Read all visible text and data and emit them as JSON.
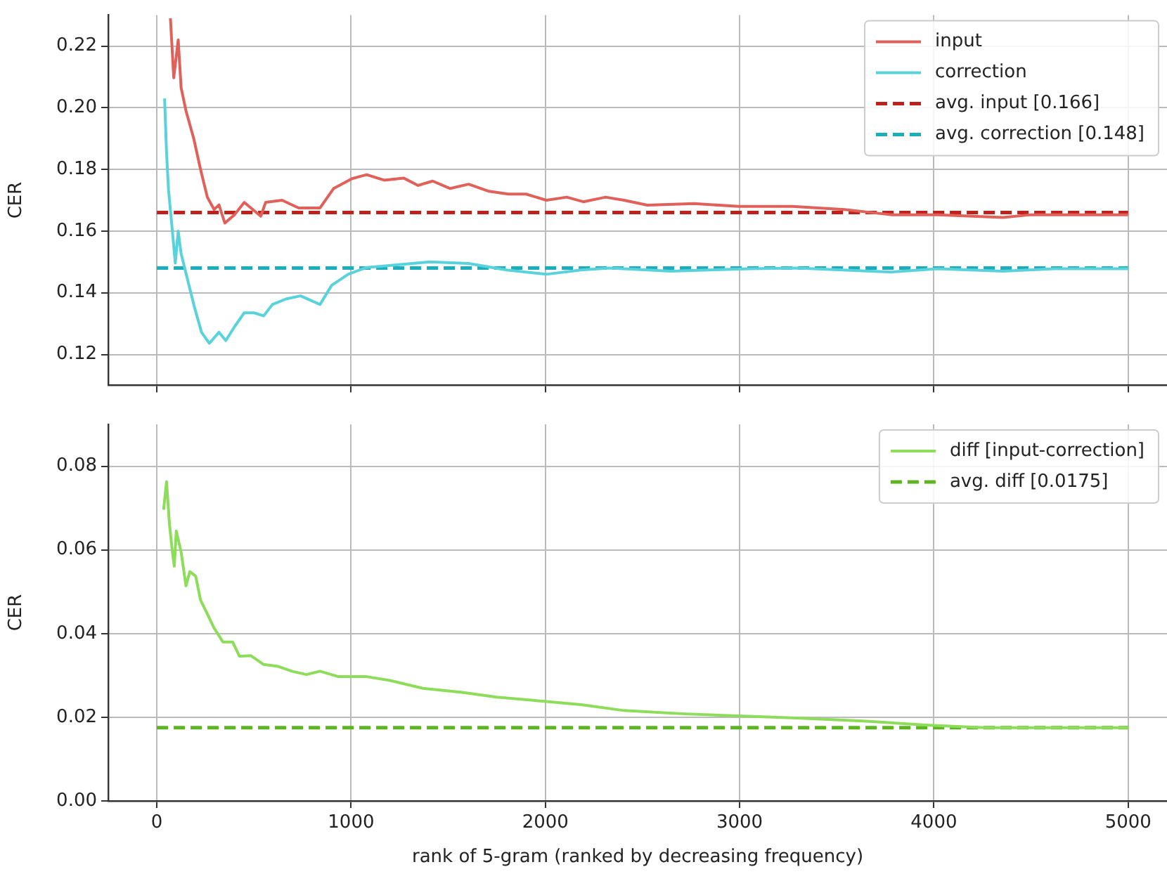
{
  "chart_data": [
    {
      "type": "line",
      "ylabel": "CER",
      "xlim": [
        -250,
        5200
      ],
      "xticks": [
        0,
        1000,
        2000,
        3000,
        4000,
        5000
      ],
      "ylim": [
        0.11,
        0.23
      ],
      "yticks": [
        0.12,
        0.14,
        0.16,
        0.18,
        {
          "value": 0.2,
          "label": "0.20"
        },
        0.22
      ],
      "tick_labels": "y",
      "grid": true,
      "legend": "top right",
      "series": [
        {
          "name": "input",
          "color": "#e0605a",
          "x": [
            70,
            87,
            110,
            125,
            150,
            190,
            225,
            260,
            295,
            320,
            350,
            400,
            450,
            535,
            560,
            645,
            730,
            840,
            910,
            1005,
            1080,
            1170,
            1270,
            1345,
            1420,
            1510,
            1605,
            1710,
            1810,
            1900,
            2005,
            2110,
            2195,
            2310,
            2405,
            2525,
            2765,
            2995,
            3270,
            3540,
            3780,
            4020,
            4355,
            4500,
            4740,
            5000
          ],
          "values": [
            0.229,
            0.2097,
            0.222,
            0.2065,
            0.199,
            0.19,
            0.18,
            0.171,
            0.167,
            0.1685,
            0.1626,
            0.1653,
            0.1693,
            0.1648,
            0.1693,
            0.17,
            0.1675,
            0.1675,
            0.1738,
            0.177,
            0.1783,
            0.1765,
            0.1772,
            0.1748,
            0.1762,
            0.1738,
            0.1752,
            0.1729,
            0.172,
            0.172,
            0.17,
            0.171,
            0.1695,
            0.171,
            0.17,
            0.1684,
            0.1689,
            0.168,
            0.168,
            0.167,
            0.1653,
            0.1653,
            0.1644,
            0.1653,
            0.1653,
            0.1653
          ]
        },
        {
          "name": "correction",
          "color": "#5ad2dc",
          "x": [
            40,
            50,
            60,
            80,
            95,
            110,
            125,
            160,
            195,
            230,
            270,
            320,
            355,
            400,
            450,
            500,
            550,
            595,
            665,
            740,
            840,
            900,
            985,
            1080,
            1225,
            1405,
            1605,
            1800,
            2005,
            2185,
            2330,
            2525,
            2645,
            3055,
            3295,
            3780,
            4020,
            4355,
            4620,
            5000
          ],
          "values": [
            0.203,
            0.1855,
            0.1735,
            0.16,
            0.1496,
            0.16,
            0.1527,
            0.1438,
            0.135,
            0.1272,
            0.1236,
            0.1272,
            0.1245,
            0.129,
            0.1335,
            0.1335,
            0.1325,
            0.1362,
            0.138,
            0.139,
            0.1362,
            0.1424,
            0.146,
            0.1482,
            0.149,
            0.15,
            0.1495,
            0.1474,
            0.146,
            0.1474,
            0.148,
            0.1474,
            0.147,
            0.1478,
            0.148,
            0.1467,
            0.1478,
            0.147,
            0.1478,
            0.1478
          ]
        },
        {
          "name": "avg. input [0.166]",
          "color": "#c0201a",
          "line_style": "dashed",
          "x": [
            0,
            5000
          ],
          "values": [
            0.166,
            0.166
          ]
        },
        {
          "name": "avg. correction [0.148]",
          "color": "#1aadba",
          "line_style": "dashed",
          "x": [
            0,
            5000
          ],
          "values": [
            0.148,
            0.148
          ]
        }
      ]
    },
    {
      "type": "line",
      "ylabel": "CER",
      "xlabel": "rank of 5-gram (ranked by decreasing frequency)",
      "xlim": [
        -250,
        5200
      ],
      "xticks": [
        0,
        1000,
        2000,
        3000,
        4000,
        5000
      ],
      "ylim": [
        0,
        0.09
      ],
      "yticks": [
        {
          "value": 0,
          "label": "0.00"
        },
        0.02,
        0.04,
        0.06,
        0.08
      ],
      "grid": true,
      "legend": "top right",
      "series": [
        {
          "name": "diff [input-correction]",
          "color": "#8ddc5a",
          "x": [
            35,
            50,
            65,
            80,
            90,
            100,
            125,
            150,
            170,
            200,
            225,
            260,
            295,
            340,
            390,
            425,
            485,
            550,
            620,
            695,
            770,
            840,
            935,
            1080,
            1200,
            1370,
            1565,
            1750,
            1995,
            2185,
            2405,
            2720,
            2995,
            3295,
            3635,
            3975,
            4265,
            5000
          ],
          "values": [
            0.0696,
            0.0763,
            0.0662,
            0.0595,
            0.0561,
            0.0645,
            0.0595,
            0.0514,
            0.0548,
            0.0537,
            0.048,
            0.0447,
            0.0413,
            0.038,
            0.038,
            0.0346,
            0.0347,
            0.0326,
            0.0322,
            0.031,
            0.0302,
            0.031,
            0.0297,
            0.0297,
            0.0288,
            0.0269,
            0.026,
            0.0248,
            0.0238,
            0.023,
            0.0216,
            0.0208,
            0.0203,
            0.0198,
            0.0191,
            0.0181,
            0.0175,
            0.0175
          ]
        },
        {
          "name": "avg. diff [0.0175]",
          "color": "#5cb41e",
          "line_style": "dashed",
          "x": [
            0,
            5000
          ],
          "values": [
            0.0175,
            0.0175
          ]
        }
      ]
    }
  ]
}
